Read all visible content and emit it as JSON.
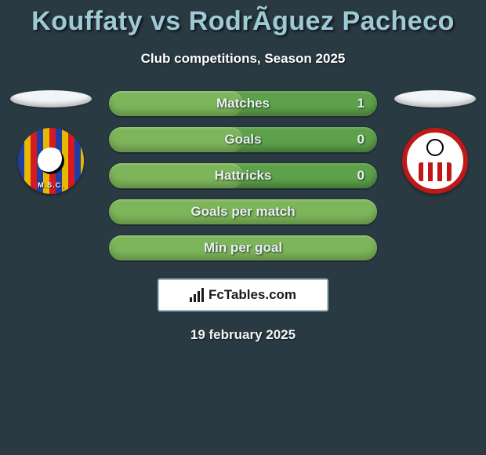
{
  "title": "Kouffaty vs RodrÃ­guez Pacheco",
  "subtitle": "Club competitions, Season 2025",
  "date": "19 february 2025",
  "footer_brand": "FcTables.com",
  "colors": {
    "background": "#2a3a42",
    "title": "#9ecad6",
    "bar_base": "#5da14a",
    "bar_fill": "#7db55a",
    "oval": "#f2f5f7",
    "badge_bg": "#ffffff",
    "badge_border": "#9bb7bf"
  },
  "left_team": {
    "crest_label": "M.S.C."
  },
  "right_team": {
    "crest_label": ""
  },
  "stats": [
    {
      "label": "Matches",
      "value": "1",
      "fill_pct": 50
    },
    {
      "label": "Goals",
      "value": "0",
      "fill_pct": 50
    },
    {
      "label": "Hattricks",
      "value": "0",
      "fill_pct": 50
    },
    {
      "label": "Goals per match",
      "value": "",
      "fill_pct": 100
    },
    {
      "label": "Min per goal",
      "value": "",
      "fill_pct": 100
    }
  ]
}
